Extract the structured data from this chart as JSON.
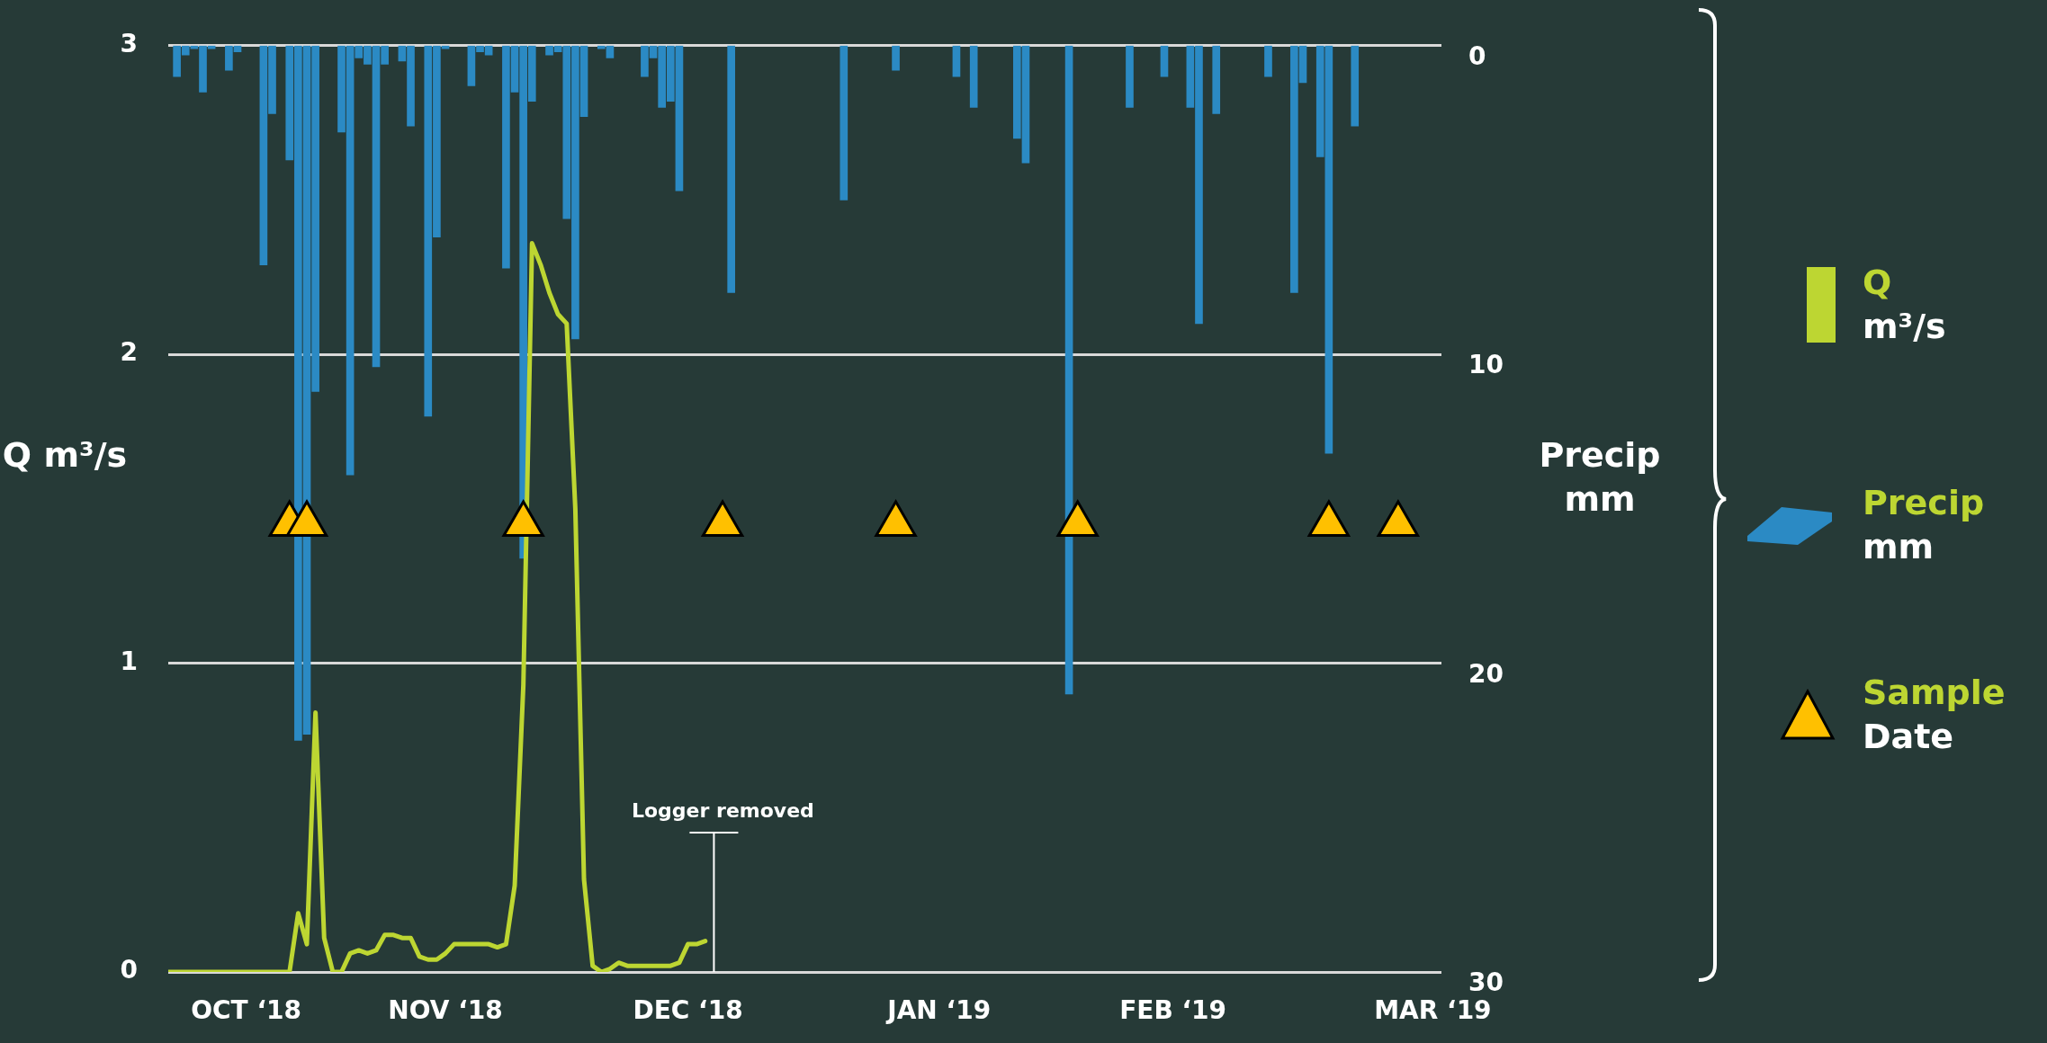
{
  "chart_data": {
    "type": "bar",
    "ylabel": "Q m³/s",
    "y2label": "Precip mm",
    "xlim": [
      "2018-10-15",
      "2019-03-11"
    ],
    "xticks": [
      {
        "value": "2018-10-24",
        "label": "OCT ‘18"
      },
      {
        "value": "2018-11-16",
        "label": "NOV ‘18"
      },
      {
        "value": "2018-12-14",
        "label": "DEC ‘18"
      },
      {
        "value": "2019-01-12",
        "label": "JAN ‘19"
      },
      {
        "value": "2019-02-08",
        "label": "FEB ‘19"
      },
      {
        "value": "2019-03-10",
        "label": "MAR ‘19"
      }
    ],
    "ylim": [
      0,
      3
    ],
    "yticks": [
      0,
      1,
      2,
      3
    ],
    "y2lim": [
      30,
      0
    ],
    "y2ticks": [
      0,
      10,
      20,
      30
    ],
    "grid": "y",
    "legend": "right",
    "ref_lines": [
      {
        "axis": "x",
        "value": "2018-12-17",
        "label": "Logger removed",
        "color": "#ffffff"
      }
    ],
    "series": [
      {
        "name": "Q m³/s",
        "type": "line",
        "color": "#bdd632",
        "x": [
          "2018-10-15",
          "2018-10-16",
          "2018-10-17",
          "2018-10-18",
          "2018-10-19",
          "2018-10-20",
          "2018-10-21",
          "2018-10-22",
          "2018-10-23",
          "2018-10-24",
          "2018-10-25",
          "2018-10-26",
          "2018-10-27",
          "2018-10-28",
          "2018-10-29",
          "2018-10-30",
          "2018-10-31",
          "2018-11-01",
          "2018-11-02",
          "2018-11-03",
          "2018-11-04",
          "2018-11-05",
          "2018-11-06",
          "2018-11-07",
          "2018-11-08",
          "2018-11-09",
          "2018-11-10",
          "2018-11-11",
          "2018-11-12",
          "2018-11-13",
          "2018-11-14",
          "2018-11-15",
          "2018-11-16",
          "2018-11-17",
          "2018-11-18",
          "2018-11-19",
          "2018-11-20",
          "2018-11-21",
          "2018-11-22",
          "2018-11-23",
          "2018-11-24",
          "2018-11-25",
          "2018-11-26",
          "2018-11-27",
          "2018-11-28",
          "2018-11-29",
          "2018-11-30",
          "2018-12-01",
          "2018-12-02",
          "2018-12-03",
          "2018-12-04",
          "2018-12-05",
          "2018-12-06",
          "2018-12-07",
          "2018-12-08",
          "2018-12-09",
          "2018-12-10",
          "2018-12-11",
          "2018-12-12",
          "2018-12-13",
          "2018-12-14",
          "2018-12-15",
          "2018-12-16"
        ],
        "values": [
          0,
          0,
          0,
          0,
          0,
          0,
          0,
          0,
          0,
          0,
          0,
          0,
          0,
          0,
          0,
          0.19,
          0.09,
          0.84,
          0.11,
          0,
          0,
          0.06,
          0.07,
          0.06,
          0.07,
          0.12,
          0.12,
          0.11,
          0.11,
          0.05,
          0.04,
          0.04,
          0.06,
          0.09,
          0.09,
          0.09,
          0.09,
          0.09,
          0.08,
          0.09,
          0.28,
          0.93,
          2.36,
          2.29,
          2.2,
          2.13,
          2.1,
          1.5,
          0.3,
          0.02,
          0,
          0.01,
          0.03,
          0.02,
          0.02,
          0.02,
          0.02,
          0.02,
          0.02,
          0.03,
          0.09,
          0.09,
          0.1
        ]
      },
      {
        "name": "Precip mm",
        "axis": "y2",
        "color": "#2b8ac4",
        "x": [
          "2018-10-16",
          "2018-10-17",
          "2018-10-18",
          "2018-10-19",
          "2018-10-20",
          "2018-10-22",
          "2018-10-23",
          "2018-10-26",
          "2018-10-27",
          "2018-10-29",
          "2018-10-30",
          "2018-10-31",
          "2018-11-01",
          "2018-11-04",
          "2018-11-05",
          "2018-11-06",
          "2018-11-07",
          "2018-11-08",
          "2018-11-09",
          "2018-11-11",
          "2018-11-12",
          "2018-11-14",
          "2018-11-15",
          "2018-11-16",
          "2018-11-19",
          "2018-11-20",
          "2018-11-21",
          "2018-11-23",
          "2018-11-24",
          "2018-11-25",
          "2018-11-26",
          "2018-11-28",
          "2018-11-29",
          "2018-11-30",
          "2018-12-01",
          "2018-12-02",
          "2018-12-04",
          "2018-12-05",
          "2018-12-09",
          "2018-12-10",
          "2018-12-11",
          "2018-12-12",
          "2018-12-13",
          "2018-12-19",
          "2019-01-01",
          "2019-01-07",
          "2019-01-14",
          "2019-01-16",
          "2019-01-21",
          "2019-01-22",
          "2019-01-27",
          "2019-02-03",
          "2019-02-07",
          "2019-02-10",
          "2019-02-11",
          "2019-02-13",
          "2019-02-19",
          "2019-02-22",
          "2019-02-23",
          "2019-02-25",
          "2019-02-26",
          "2019-03-01"
        ],
        "values": [
          1.0,
          0.3,
          0.1,
          1.5,
          0.1,
          0.8,
          0.2,
          7.1,
          2.2,
          3.7,
          22.5,
          22.3,
          11.2,
          2.8,
          13.9,
          0.4,
          0.6,
          10.4,
          0.6,
          0.5,
          2.6,
          12.0,
          6.2,
          0.1,
          1.3,
          0.2,
          0.3,
          7.2,
          1.5,
          16.6,
          1.8,
          0.3,
          0.2,
          5.6,
          9.5,
          2.3,
          0.1,
          0.4,
          1.0,
          0.4,
          2.0,
          1.8,
          4.7,
          8.0,
          5.0,
          0.8,
          1.0,
          2.0,
          3.0,
          3.8,
          21.0,
          2.0,
          1.0,
          2.0,
          9.0,
          2.2,
          1.0,
          8.0,
          1.2,
          3.6,
          13.2,
          2.6
        ]
      },
      {
        "name": "Sample Date",
        "type": "scatter",
        "marker": "triangle",
        "color": "#ffc000",
        "x": [
          "2018-10-29",
          "2018-10-31",
          "2018-11-25",
          "2018-12-18",
          "2019-01-07",
          "2019-01-28",
          "2019-02-26",
          "2019-03-06"
        ],
        "values": [
          1.45,
          1.45,
          1.45,
          1.45,
          1.45,
          1.45,
          1.45,
          1.45
        ]
      }
    ]
  }
}
